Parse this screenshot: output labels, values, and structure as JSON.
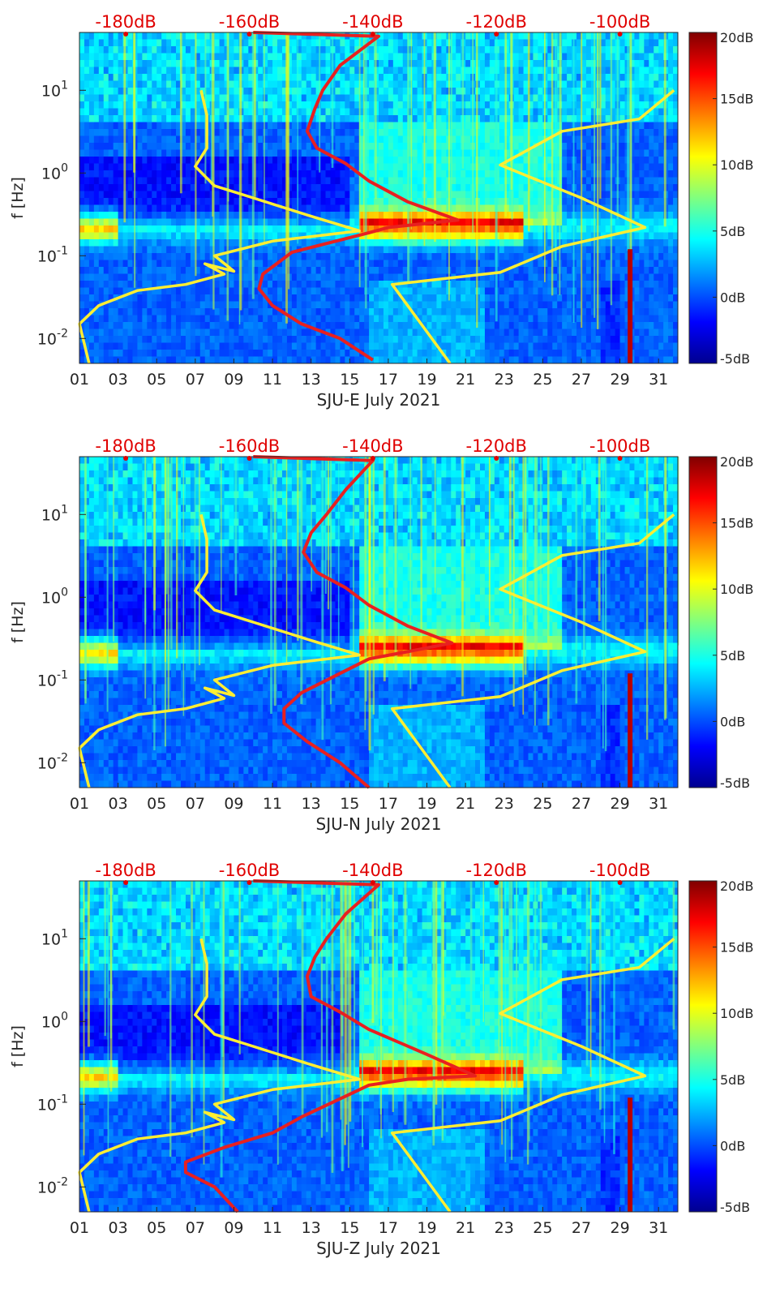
{
  "chart_data": [
    {
      "type": "heatmap",
      "subtype": "spectrogram with overlaid noise-level curves",
      "xlabel": "SJU-E July 2021",
      "ylabel": "f [Hz]",
      "x_range_days": [
        1,
        32
      ],
      "x_ticks": [
        "01",
        "03",
        "05",
        "07",
        "09",
        "11",
        "13",
        "15",
        "17",
        "19",
        "21",
        "23",
        "25",
        "27",
        "29",
        "31"
      ],
      "y_scale": "log",
      "y_range_hz": [
        0.005,
        50
      ],
      "y_ticks": [
        {
          "v": 0.01,
          "base": "10",
          "exp": "-2"
        },
        {
          "v": 0.1,
          "base": "10",
          "exp": "-1"
        },
        {
          "v": 1,
          "base": "10",
          "exp": "0"
        },
        {
          "v": 10,
          "base": "10",
          "exp": "1"
        }
      ],
      "top_axis_ticks": [
        {
          "day": 3.4,
          "label": "-180dB"
        },
        {
          "day": 9.8,
          "label": "-160dB"
        },
        {
          "day": 16.2,
          "label": "-140dB"
        },
        {
          "day": 22.6,
          "label": "-120dB"
        },
        {
          "day": 29,
          "label": "-100dB"
        }
      ],
      "colorbar": {
        "min": -5,
        "max": 20,
        "ticks": [
          "20dB",
          "15dB",
          "10dB",
          "5dB",
          "0dB",
          "-5dB"
        ],
        "colormap": "jet"
      },
      "series": [
        {
          "color": "#ffee33",
          "points": [
            [
              1.5,
              0.005
            ],
            [
              1.0,
              0.015
            ],
            [
              2.0,
              0.025
            ],
            [
              4.0,
              0.038
            ],
            [
              6.5,
              0.045
            ],
            [
              8.5,
              0.06
            ],
            [
              7.5,
              0.08
            ],
            [
              9.0,
              0.065
            ],
            [
              8.0,
              0.1
            ],
            [
              11.0,
              0.15
            ],
            [
              15.5,
              0.2
            ],
            [
              13,
              0.3
            ],
            [
              10,
              0.5
            ],
            [
              8,
              0.7
            ],
            [
              7,
              1.2
            ],
            [
              7.6,
              2
            ],
            [
              7.6,
              5
            ],
            [
              7.3,
              10
            ]
          ]
        },
        {
          "color": "#ffee33",
          "points": [
            [
              20.2,
              0.005
            ],
            [
              17.2,
              0.045
            ],
            [
              22.8,
              0.063
            ],
            [
              26,
              0.13
            ],
            [
              30.3,
              0.22
            ],
            [
              27,
              0.5
            ],
            [
              22.8,
              1.25
            ],
            [
              26,
              3.2
            ],
            [
              30,
              4.5
            ],
            [
              31.8,
              10
            ]
          ]
        },
        {
          "color": "#e82020",
          "points": [
            [
              16.2,
              0.0055
            ],
            [
              14.5,
              0.01
            ],
            [
              12.5,
              0.015
            ],
            [
              11,
              0.025
            ],
            [
              10.3,
              0.04
            ],
            [
              10.5,
              0.06
            ],
            [
              12,
              0.11
            ],
            [
              16,
              0.19
            ],
            [
              17,
              0.22
            ],
            [
              20.6,
              0.27
            ],
            [
              18,
              0.45
            ],
            [
              16,
              0.8
            ],
            [
              14.8,
              1.3
            ],
            [
              13.3,
              2
            ],
            [
              12.8,
              3.2
            ],
            [
              13.2,
              6
            ],
            [
              13.6,
              10
            ],
            [
              14.5,
              20
            ],
            [
              16.5,
              45
            ],
            [
              10,
              50
            ]
          ]
        }
      ]
    },
    {
      "type": "heatmap",
      "subtype": "spectrogram with overlaid noise-level curves",
      "xlabel": "SJU-N July 2021",
      "ylabel": "f [Hz]",
      "x_range_days": [
        1,
        32
      ],
      "x_ticks": [
        "01",
        "03",
        "05",
        "07",
        "09",
        "11",
        "13",
        "15",
        "17",
        "19",
        "21",
        "23",
        "25",
        "27",
        "29",
        "31"
      ],
      "y_scale": "log",
      "y_range_hz": [
        0.005,
        50
      ],
      "y_ticks": [
        {
          "v": 0.01,
          "base": "10",
          "exp": "-2"
        },
        {
          "v": 0.1,
          "base": "10",
          "exp": "-1"
        },
        {
          "v": 1,
          "base": "10",
          "exp": "0"
        },
        {
          "v": 10,
          "base": "10",
          "exp": "1"
        }
      ],
      "top_axis_ticks": [
        {
          "day": 3.4,
          "label": "-180dB"
        },
        {
          "day": 9.8,
          "label": "-160dB"
        },
        {
          "day": 16.2,
          "label": "-140dB"
        },
        {
          "day": 22.6,
          "label": "-120dB"
        },
        {
          "day": 29,
          "label": "-100dB"
        }
      ],
      "colorbar": {
        "min": -5,
        "max": 20,
        "ticks": [
          "20dB",
          "15dB",
          "10dB",
          "5dB",
          "0dB",
          "-5dB"
        ],
        "colormap": "jet"
      },
      "series": [
        {
          "color": "#ffee33",
          "points": [
            [
              1.5,
              0.005
            ],
            [
              1.0,
              0.015
            ],
            [
              2.0,
              0.025
            ],
            [
              4.0,
              0.038
            ],
            [
              6.5,
              0.045
            ],
            [
              8.5,
              0.06
            ],
            [
              7.5,
              0.08
            ],
            [
              9.0,
              0.065
            ],
            [
              8.0,
              0.1
            ],
            [
              11.0,
              0.15
            ],
            [
              15.5,
              0.2
            ],
            [
              13,
              0.3
            ],
            [
              10,
              0.5
            ],
            [
              8,
              0.7
            ],
            [
              7,
              1.2
            ],
            [
              7.6,
              2
            ],
            [
              7.6,
              5
            ],
            [
              7.3,
              10
            ]
          ]
        },
        {
          "color": "#ffee33",
          "points": [
            [
              20.2,
              0.005
            ],
            [
              17.2,
              0.045
            ],
            [
              22.8,
              0.063
            ],
            [
              26,
              0.13
            ],
            [
              30.3,
              0.22
            ],
            [
              27,
              0.5
            ],
            [
              22.8,
              1.25
            ],
            [
              26,
              3.2
            ],
            [
              30,
              4.5
            ],
            [
              31.8,
              10
            ]
          ]
        },
        {
          "color": "#e82020",
          "points": [
            [
              16,
              0.005
            ],
            [
              14.5,
              0.01
            ],
            [
              12.8,
              0.018
            ],
            [
              11.6,
              0.03
            ],
            [
              11.6,
              0.045
            ],
            [
              12.5,
              0.07
            ],
            [
              14.5,
              0.12
            ],
            [
              16,
              0.18
            ],
            [
              18,
              0.22
            ],
            [
              20.3,
              0.28
            ],
            [
              18,
              0.45
            ],
            [
              16,
              0.8
            ],
            [
              14.8,
              1.3
            ],
            [
              13.3,
              2
            ],
            [
              12.6,
              3.5
            ],
            [
              13,
              6
            ],
            [
              13.8,
              10
            ],
            [
              14.8,
              20
            ],
            [
              16.2,
              45
            ],
            [
              10,
              50
            ]
          ]
        }
      ]
    },
    {
      "type": "heatmap",
      "subtype": "spectrogram with overlaid noise-level curves",
      "xlabel": "SJU-Z July 2021",
      "ylabel": "f [Hz]",
      "x_range_days": [
        1,
        32
      ],
      "x_ticks": [
        "01",
        "03",
        "05",
        "07",
        "09",
        "11",
        "13",
        "15",
        "17",
        "19",
        "21",
        "23",
        "25",
        "27",
        "29",
        "31"
      ],
      "y_scale": "log",
      "y_range_hz": [
        0.005,
        50
      ],
      "y_ticks": [
        {
          "v": 0.01,
          "base": "10",
          "exp": "-2"
        },
        {
          "v": 0.1,
          "base": "10",
          "exp": "-1"
        },
        {
          "v": 1,
          "base": "10",
          "exp": "0"
        },
        {
          "v": 10,
          "base": "10",
          "exp": "1"
        }
      ],
      "top_axis_ticks": [
        {
          "day": 3.4,
          "label": "-180dB"
        },
        {
          "day": 9.8,
          "label": "-160dB"
        },
        {
          "day": 16.2,
          "label": "-140dB"
        },
        {
          "day": 22.6,
          "label": "-120dB"
        },
        {
          "day": 29,
          "label": "-100dB"
        }
      ],
      "colorbar": {
        "min": -5,
        "max": 20,
        "ticks": [
          "20dB",
          "15dB",
          "10dB",
          "5dB",
          "0dB",
          "-5dB"
        ],
        "colormap": "jet"
      },
      "series": [
        {
          "color": "#ffee33",
          "points": [
            [
              1.5,
              0.005
            ],
            [
              1.0,
              0.015
            ],
            [
              2.0,
              0.025
            ],
            [
              4.0,
              0.038
            ],
            [
              6.5,
              0.045
            ],
            [
              8.5,
              0.06
            ],
            [
              7.5,
              0.08
            ],
            [
              9.0,
              0.065
            ],
            [
              8.0,
              0.1
            ],
            [
              11.0,
              0.15
            ],
            [
              15.5,
              0.2
            ],
            [
              13,
              0.3
            ],
            [
              10,
              0.5
            ],
            [
              8,
              0.7
            ],
            [
              7,
              1.2
            ],
            [
              7.6,
              2
            ],
            [
              7.6,
              5
            ],
            [
              7.3,
              10
            ]
          ]
        },
        {
          "color": "#ffee33",
          "points": [
            [
              20.2,
              0.005
            ],
            [
              17.2,
              0.045
            ],
            [
              22.8,
              0.063
            ],
            [
              26,
              0.13
            ],
            [
              30.3,
              0.22
            ],
            [
              27,
              0.5
            ],
            [
              22.8,
              1.25
            ],
            [
              26,
              3.2
            ],
            [
              30,
              4.5
            ],
            [
              31.8,
              10
            ]
          ]
        },
        {
          "color": "#e82020",
          "points": [
            [
              9.2,
              0.005
            ],
            [
              8,
              0.01
            ],
            [
              6.5,
              0.015
            ],
            [
              6.5,
              0.02
            ],
            [
              8.5,
              0.03
            ],
            [
              11,
              0.045
            ],
            [
              12.5,
              0.07
            ],
            [
              16,
              0.17
            ],
            [
              18,
              0.2
            ],
            [
              21.5,
              0.22
            ],
            [
              19,
              0.4
            ],
            [
              16,
              0.8
            ],
            [
              14.5,
              1.3
            ],
            [
              13,
              2
            ],
            [
              12.8,
              3.5
            ],
            [
              13.2,
              6
            ],
            [
              13.8,
              10
            ],
            [
              14.8,
              20
            ],
            [
              16.5,
              45
            ],
            [
              10,
              50
            ]
          ]
        }
      ]
    }
  ]
}
